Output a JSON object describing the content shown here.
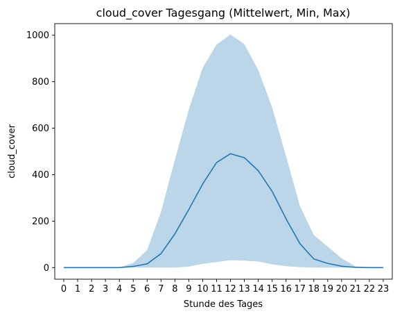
{
  "chart_data": {
    "type": "area",
    "title": "cloud_cover Tagesgang (Mittelwert, Min, Max)",
    "xlabel": "Stunde des Tages",
    "ylabel": "cloud_cover",
    "x": [
      0,
      1,
      2,
      3,
      4,
      5,
      6,
      7,
      8,
      9,
      10,
      11,
      12,
      13,
      14,
      15,
      16,
      17,
      18,
      19,
      20,
      21,
      22,
      23
    ],
    "xlim": [
      -0.65,
      23.65
    ],
    "ylim": [
      -50,
      1050
    ],
    "yticks": [
      0,
      200,
      400,
      600,
      800,
      1000
    ],
    "grid": false,
    "series": [
      {
        "kind": "line",
        "values": [
          0,
          0,
          0,
          0,
          0,
          5,
          16,
          60,
          145,
          250,
          360,
          452,
          490,
          473,
          417,
          328,
          210,
          103,
          37,
          18,
          6,
          1,
          0,
          0
        ],
        "color": "#1f77b4"
      },
      {
        "kind": "band",
        "min": [
          0,
          0,
          0,
          0,
          0,
          0,
          0,
          0,
          0,
          4,
          16,
          24,
          32,
          30,
          26,
          14,
          6,
          2,
          0,
          0,
          0,
          0,
          0,
          0
        ],
        "max": [
          0,
          0,
          0,
          0,
          0,
          20,
          75,
          240,
          465,
          680,
          860,
          960,
          1003,
          962,
          850,
          690,
          480,
          265,
          140,
          90,
          40,
          5,
          0,
          0
        ],
        "color": "#1f77b4",
        "alpha": 0.3
      }
    ]
  }
}
